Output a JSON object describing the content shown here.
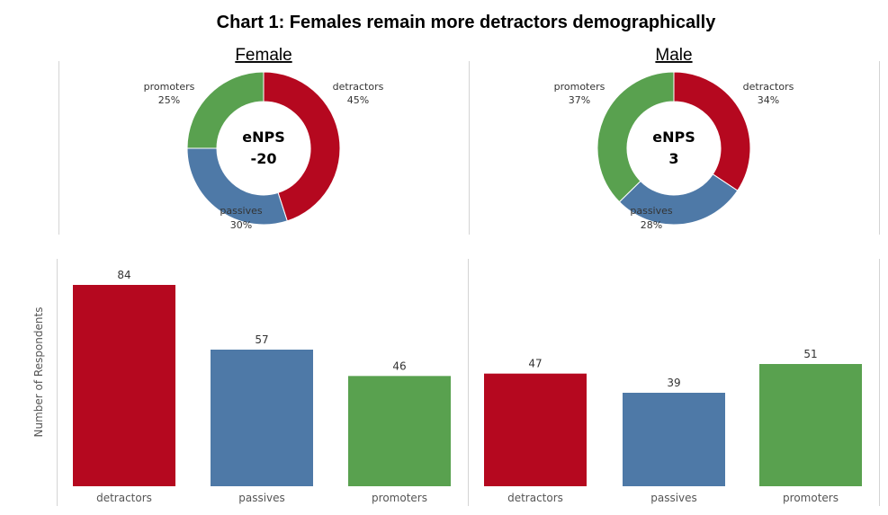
{
  "title": "Chart 1: Females remain more detractors demographically",
  "colors": {
    "detractors": "#b5081f",
    "passives": "#4e79a7",
    "promoters": "#59a14f"
  },
  "chart_data": [
    {
      "type": "pie",
      "style": "donut",
      "panel": "Female",
      "center_label": "eNPS",
      "center_value": "-20",
      "slices": [
        {
          "label": "detractors",
          "value": 45,
          "value_label": "45%"
        },
        {
          "label": "passives",
          "value": 30,
          "value_label": "30%"
        },
        {
          "label": "promoters",
          "value": 25,
          "value_label": "25%"
        }
      ]
    },
    {
      "type": "pie",
      "style": "donut",
      "panel": "Male",
      "center_label": "eNPS",
      "center_value": "3",
      "slices": [
        {
          "label": "detractors",
          "value": 34,
          "value_label": "34%"
        },
        {
          "label": "passives",
          "value": 28,
          "value_label": "28%"
        },
        {
          "label": "promoters",
          "value": 37,
          "value_label": "37%"
        }
      ]
    },
    {
      "type": "bar",
      "ylabel": "Number of Respondents",
      "ylim": [
        0,
        84
      ],
      "panels": [
        {
          "name": "Female",
          "categories": [
            "detractors",
            "passives",
            "promoters"
          ],
          "values": [
            84,
            57,
            46
          ]
        },
        {
          "name": "Male",
          "categories": [
            "detractors",
            "passives",
            "promoters"
          ],
          "values": [
            47,
            39,
            51
          ]
        }
      ]
    }
  ]
}
